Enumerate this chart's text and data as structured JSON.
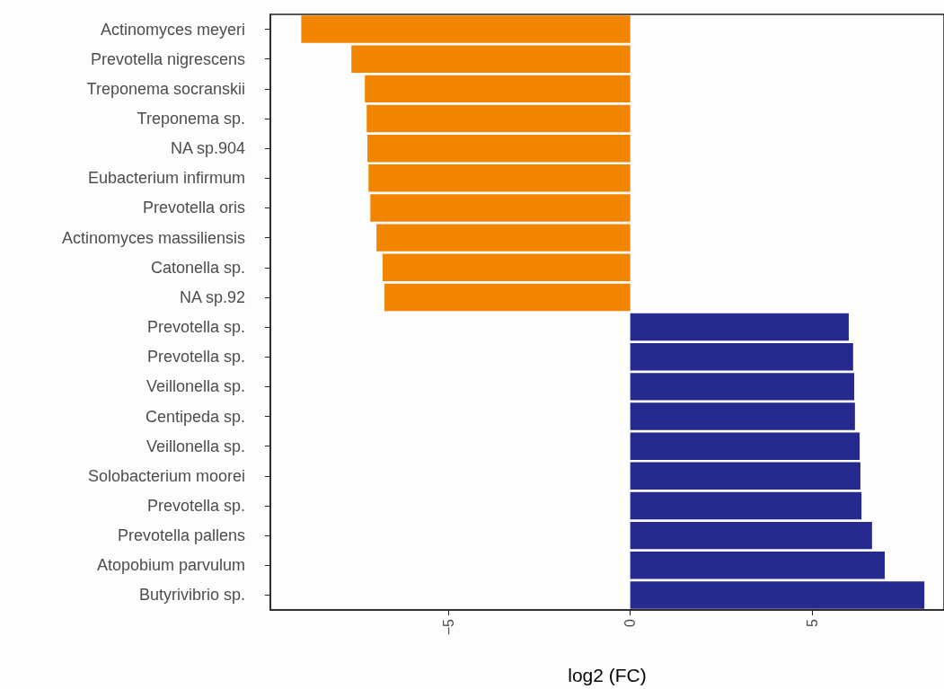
{
  "chart_data": {
    "type": "bar",
    "orientation": "horizontal",
    "xlabel": "log2 (FC)",
    "categories": [
      "Actinomyces meyeri",
      "Prevotella nigrescens",
      "Treponema socranskii",
      "Treponema sp.",
      "NA sp.904",
      "Eubacterium infirmum",
      "Prevotella oris",
      "Actinomyces massiliensis",
      "Catonella sp.",
      "NA sp.92",
      "Prevotella sp.",
      "Prevotella sp.",
      "Veillonella sp.",
      "Centipeda sp.",
      "Veillonella sp.",
      "Solobacterium moorei",
      "Prevotella sp.",
      "Prevotella pallens",
      "Atopobium parvulum",
      "Butyrivibrio sp."
    ],
    "values": [
      -9.05,
      -7.67,
      -7.3,
      -7.25,
      -7.23,
      -7.2,
      -7.15,
      -6.98,
      -6.81,
      -6.76,
      6.01,
      6.13,
      6.16,
      6.18,
      6.31,
      6.33,
      6.36,
      6.65,
      7.0,
      8.09
    ],
    "colors": [
      "#f28500",
      "#f28500",
      "#f28500",
      "#f28500",
      "#f28500",
      "#f28500",
      "#f28500",
      "#f28500",
      "#f28500",
      "#f28500",
      "#262a8f",
      "#262a8f",
      "#262a8f",
      "#262a8f",
      "#262a8f",
      "#262a8f",
      "#262a8f",
      "#262a8f",
      "#262a8f",
      "#262a8f"
    ],
    "xlim": [
      -9.9,
      8.63
    ],
    "xticks": [
      {
        "value": -5,
        "label": "−5"
      },
      0,
      5
    ],
    "grid": false
  }
}
